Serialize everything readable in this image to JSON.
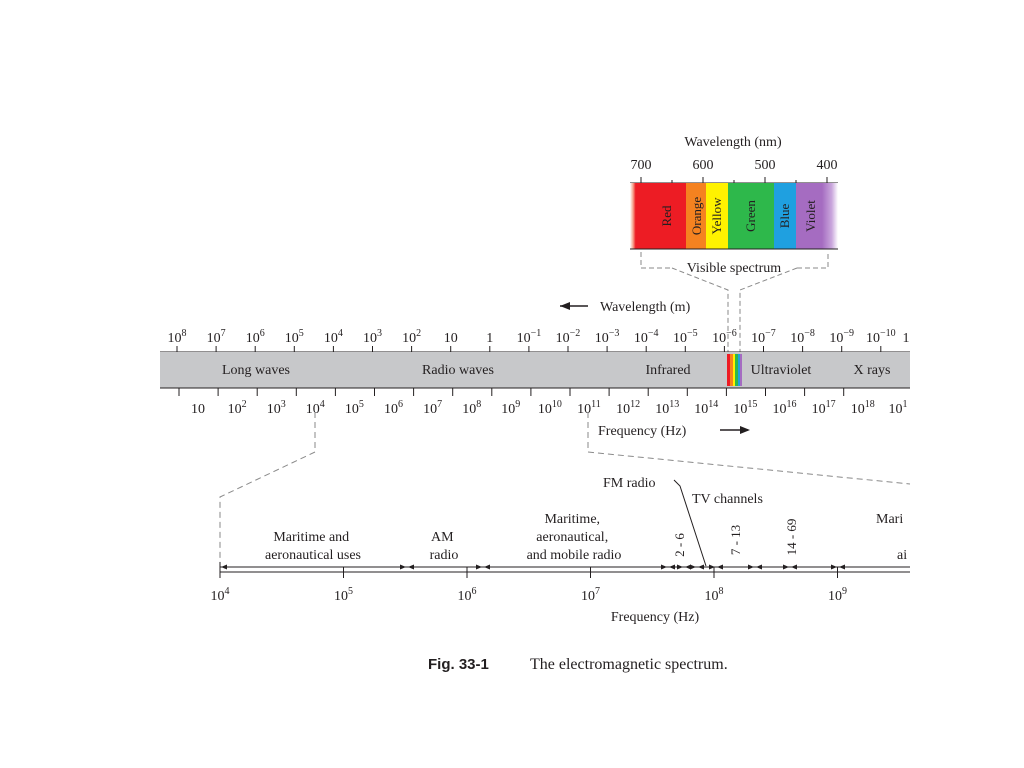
{
  "visible": {
    "title": "Wavelength (nm)",
    "ticks": [
      "700",
      "600",
      "500",
      "400"
    ],
    "colors": [
      {
        "name": "Red",
        "hex": "#ed1c24"
      },
      {
        "name": "Orange",
        "hex": "#f58220"
      },
      {
        "name": "Yellow",
        "hex": "#fff200"
      },
      {
        "name": "Green",
        "hex": "#2eb84b"
      },
      {
        "name": "Blue",
        "hex": "#1fa0e0"
      },
      {
        "name": "Violet",
        "hex": "#a56cc1"
      }
    ],
    "caption": "Visible spectrum"
  },
  "main": {
    "wavelength_label": "Wavelength (m)",
    "wavelength_ticks": [
      {
        "base": "10",
        "exp": "8"
      },
      {
        "base": "10",
        "exp": "7"
      },
      {
        "base": "10",
        "exp": "6"
      },
      {
        "base": "10",
        "exp": "5"
      },
      {
        "base": "10",
        "exp": "4"
      },
      {
        "base": "10",
        "exp": "3"
      },
      {
        "base": "10",
        "exp": "2"
      },
      {
        "base": "10",
        "exp": ""
      },
      {
        "base": "1",
        "exp": ""
      },
      {
        "base": "10",
        "exp": "−1"
      },
      {
        "base": "10",
        "exp": "−2"
      },
      {
        "base": "10",
        "exp": "−3"
      },
      {
        "base": "10",
        "exp": "−4"
      },
      {
        "base": "10",
        "exp": "−5"
      },
      {
        "base": "10",
        "exp": "−6"
      },
      {
        "base": "10",
        "exp": "−7"
      },
      {
        "base": "10",
        "exp": "−8"
      },
      {
        "base": "10",
        "exp": "−9"
      },
      {
        "base": "10",
        "exp": "−10"
      },
      {
        "base": "1",
        "exp": ""
      }
    ],
    "bands": [
      "Long waves",
      "Radio waves",
      "Infrared",
      "Ultraviolet",
      "X rays"
    ],
    "frequency_ticks": [
      {
        "base": "10",
        "exp": ""
      },
      {
        "base": "10",
        "exp": "2"
      },
      {
        "base": "10",
        "exp": "3"
      },
      {
        "base": "10",
        "exp": "4"
      },
      {
        "base": "10",
        "exp": "5"
      },
      {
        "base": "10",
        "exp": "6"
      },
      {
        "base": "10",
        "exp": "7"
      },
      {
        "base": "10",
        "exp": "8"
      },
      {
        "base": "10",
        "exp": "9"
      },
      {
        "base": "10",
        "exp": "10"
      },
      {
        "base": "10",
        "exp": "11"
      },
      {
        "base": "10",
        "exp": "12"
      },
      {
        "base": "10",
        "exp": "13"
      },
      {
        "base": "10",
        "exp": "14"
      },
      {
        "base": "10",
        "exp": "15"
      },
      {
        "base": "10",
        "exp": "16"
      },
      {
        "base": "10",
        "exp": "17"
      },
      {
        "base": "10",
        "exp": "18"
      },
      {
        "base": "10",
        "exp": "1"
      }
    ],
    "frequency_label": "Frequency (Hz)"
  },
  "detail": {
    "uses": [
      {
        "lines": [
          "Maritime and",
          "aeronautical uses"
        ]
      },
      {
        "lines": [
          "AM",
          "radio"
        ]
      },
      {
        "lines": [
          "Maritime,",
          "aeronautical,",
          "and mobile radio"
        ]
      },
      {
        "lines": [
          "Mari"
        ]
      },
      {
        "lines": [
          "ai"
        ]
      }
    ],
    "fm_label": "FM radio",
    "tv_label": "TV channels",
    "channels": [
      "2 - 6",
      "7 - 13",
      "14 - 69"
    ],
    "ticks": [
      {
        "base": "10",
        "exp": "4"
      },
      {
        "base": "10",
        "exp": "5"
      },
      {
        "base": "10",
        "exp": "6"
      },
      {
        "base": "10",
        "exp": "7"
      },
      {
        "base": "10",
        "exp": "8"
      },
      {
        "base": "10",
        "exp": "9"
      }
    ],
    "frequency_label": "Frequency (Hz)"
  },
  "caption": {
    "fig_label": "Fig. 33-1",
    "text": "The electromagnetic spectrum."
  }
}
